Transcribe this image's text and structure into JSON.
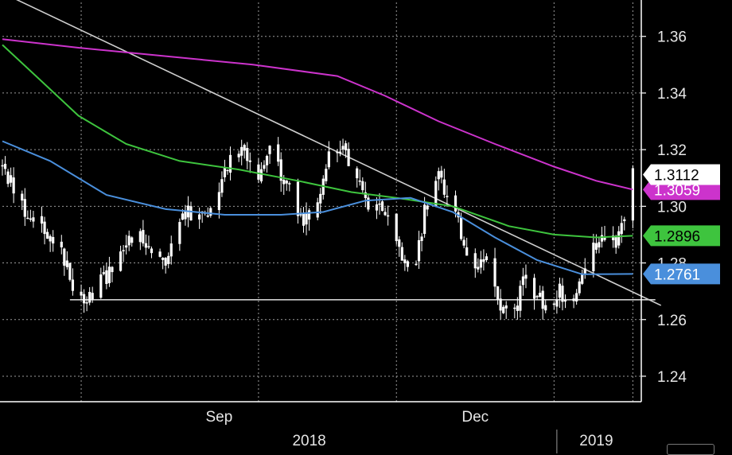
{
  "chart_data": {
    "type": "candlestick",
    "title": "",
    "xlabel": "",
    "ylabel": "",
    "ylim": [
      1.231,
      1.372
    ],
    "y_ticks": [
      1.24,
      1.26,
      1.28,
      1.3,
      1.32,
      1.34,
      1.36
    ],
    "y_tick_labels": [
      "1.24",
      "1.26",
      "1.28",
      "1.30",
      "1.32",
      "1.34",
      "1.36"
    ],
    "x_range": [
      "2018-06-18",
      "2019-01-31"
    ],
    "x_month_labels": [
      {
        "date": "2018-09-03",
        "label": "Sep"
      },
      {
        "date": "2018-12-03",
        "label": "Dec"
      }
    ],
    "x_year_labels": [
      {
        "date": "2018-10-05",
        "label": "2018"
      },
      {
        "date": "2019-01-15",
        "label": "2019"
      }
    ],
    "x_gridlines": [
      "2018-07-16",
      "2018-09-17",
      "2018-11-05",
      "2018-12-31",
      "2019-01-28"
    ],
    "year_divider": "2019-01-01",
    "grid": true,
    "price_anchors": [
      [
        "2018-06-18",
        1.314
      ],
      [
        "2018-06-25",
        1.3
      ],
      [
        "2018-07-02",
        1.293
      ],
      [
        "2018-07-09",
        1.285
      ],
      [
        "2018-07-13",
        1.271
      ],
      [
        "2018-07-18",
        1.268
      ],
      [
        "2018-07-25",
        1.275
      ],
      [
        "2018-08-01",
        1.289
      ],
      [
        "2018-08-08",
        1.288
      ],
      [
        "2018-08-15",
        1.282
      ],
      [
        "2018-08-22",
        1.298
      ],
      [
        "2018-08-29",
        1.297
      ],
      [
        "2018-09-03",
        1.308
      ],
      [
        "2018-09-07",
        1.318
      ],
      [
        "2018-09-12",
        1.32
      ],
      [
        "2018-09-17",
        1.312
      ],
      [
        "2018-09-21",
        1.32
      ],
      [
        "2018-09-28",
        1.305
      ],
      [
        "2018-10-03",
        1.295
      ],
      [
        "2018-10-07",
        1.3
      ],
      [
        "2018-10-12",
        1.318
      ],
      [
        "2018-10-17",
        1.322
      ],
      [
        "2018-10-22",
        1.308
      ],
      [
        "2018-10-27",
        1.3
      ],
      [
        "2018-11-01",
        1.298
      ],
      [
        "2018-11-06",
        1.283
      ],
      [
        "2018-11-11",
        1.273
      ],
      [
        "2018-11-15",
        1.298
      ],
      [
        "2018-11-20",
        1.31
      ],
      [
        "2018-11-25",
        1.3
      ],
      [
        "2018-11-30",
        1.285
      ],
      [
        "2018-12-04",
        1.278
      ],
      [
        "2018-12-08",
        1.281
      ],
      [
        "2018-12-12",
        1.265
      ],
      [
        "2018-12-16",
        1.258
      ],
      [
        "2018-12-20",
        1.274
      ],
      [
        "2018-12-25",
        1.268
      ],
      [
        "2018-12-30",
        1.262
      ],
      [
        "2019-01-02",
        1.272
      ],
      [
        "2019-01-05",
        1.262
      ],
      [
        "2019-01-08",
        1.268
      ],
      [
        "2019-01-11",
        1.28
      ],
      [
        "2019-01-15",
        1.286
      ],
      [
        "2019-01-18",
        1.29
      ],
      [
        "2019-01-22",
        1.288
      ],
      [
        "2019-01-25",
        1.297
      ],
      [
        "2019-01-28",
        1.311
      ]
    ],
    "trendline": {
      "from": [
        "2018-06-23",
        1.373
      ],
      "to": [
        "2019-02-07",
        1.265
      ],
      "color": "#cfcfcf"
    },
    "support_line": {
      "from": [
        "2018-07-12",
        1.267
      ],
      "to": [
        "2019-02-05",
        1.267
      ],
      "color": "#cfcfcf"
    },
    "series": [
      {
        "name": "",
        "color": "#cc33cc",
        "points": [
          [
            "2018-06-18",
            1.359
          ],
          [
            "2018-07-15",
            1.356
          ],
          [
            "2018-08-15",
            1.353
          ],
          [
            "2018-09-15",
            1.35
          ],
          [
            "2018-10-15",
            1.346
          ],
          [
            "2018-11-01",
            1.339
          ],
          [
            "2018-11-20",
            1.33
          ],
          [
            "2018-12-10",
            1.322
          ],
          [
            "2018-12-31",
            1.314
          ],
          [
            "2019-01-15",
            1.309
          ],
          [
            "2019-01-28",
            1.3059
          ]
        ]
      },
      {
        "name": "",
        "color": "#3ec43e",
        "points": [
          [
            "2018-06-18",
            1.357
          ],
          [
            "2018-07-01",
            1.345
          ],
          [
            "2018-07-15",
            1.332
          ],
          [
            "2018-08-01",
            1.322
          ],
          [
            "2018-08-20",
            1.316
          ],
          [
            "2018-09-10",
            1.313
          ],
          [
            "2018-10-01",
            1.309
          ],
          [
            "2018-10-20",
            1.305
          ],
          [
            "2018-11-05",
            1.303
          ],
          [
            "2018-11-25",
            1.3
          ],
          [
            "2018-12-15",
            1.293
          ],
          [
            "2018-12-31",
            1.29
          ],
          [
            "2019-01-15",
            1.289
          ],
          [
            "2019-01-28",
            1.2896
          ]
        ]
      },
      {
        "name": "",
        "color": "#4a8fdc",
        "points": [
          [
            "2018-06-18",
            1.323
          ],
          [
            "2018-07-05",
            1.316
          ],
          [
            "2018-07-25",
            1.304
          ],
          [
            "2018-08-15",
            1.299
          ],
          [
            "2018-09-05",
            1.297
          ],
          [
            "2018-09-25",
            1.297
          ],
          [
            "2018-10-10",
            1.298
          ],
          [
            "2018-10-25",
            1.302
          ],
          [
            "2018-11-10",
            1.303
          ],
          [
            "2018-11-25",
            1.298
          ],
          [
            "2018-12-10",
            1.289
          ],
          [
            "2018-12-25",
            1.281
          ],
          [
            "2019-01-10",
            1.276
          ],
          [
            "2019-01-28",
            1.2761
          ]
        ]
      }
    ],
    "value_tags": [
      {
        "label": "1.3112",
        "value": 1.3112,
        "bg": "#ffffff",
        "fg": "#000000"
      },
      {
        "label": "1.3059",
        "value": 1.3059,
        "bg": "#cc33cc",
        "fg": "#ffffff"
      },
      {
        "label": "1.2896",
        "value": 1.2896,
        "bg": "#3ec43e",
        "fg": "#000000"
      },
      {
        "label": "1.2761",
        "value": 1.2761,
        "bg": "#4a8fdc",
        "fg": "#ffffff"
      }
    ]
  }
}
